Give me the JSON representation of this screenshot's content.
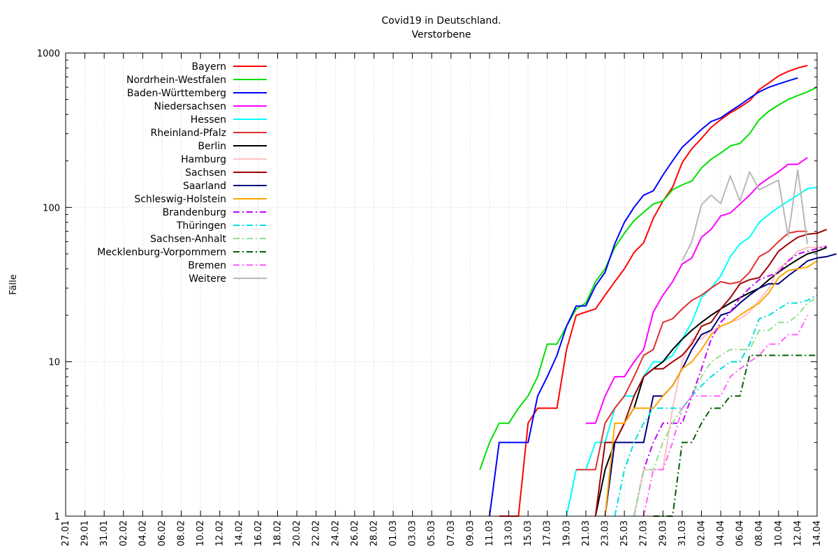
{
  "chart_data": {
    "type": "line",
    "title": "Covid19 in Deutschland.",
    "subtitle": "Verstorbene",
    "xlabel": "",
    "ylabel": "Fälle",
    "yscale": "log",
    "ylim": [
      1,
      1000
    ],
    "y_ticks": [
      "1",
      "10",
      "100",
      "1000"
    ],
    "x_ticks": [
      "27.01",
      "29.01",
      "31.01",
      "02.02",
      "04.02",
      "06.02",
      "08.02",
      "10.02",
      "12.02",
      "14.02",
      "16.02",
      "18.02",
      "20.02",
      "22.02",
      "24.02",
      "26.02",
      "28.02",
      "01.03",
      "03.03",
      "05.03",
      "07.03",
      "09.03",
      "11.03",
      "13.03",
      "15.03",
      "17.03",
      "19.03",
      "21.03",
      "23.03",
      "25.03",
      "27.03",
      "29.03",
      "31.03",
      "02.04",
      "04.04",
      "06.04",
      "08.04",
      "10.04",
      "12.04",
      "14.04"
    ],
    "x_day_range": [
      "27.01",
      "14.04"
    ],
    "grid": true,
    "legend_position": "top-left",
    "series": [
      {
        "name": "Bayern",
        "color": "#ff0000",
        "dash": "solid",
        "start": "12.03",
        "values": [
          1,
          1,
          1,
          4,
          5,
          5,
          5,
          12,
          20,
          21,
          22,
          27,
          33,
          40,
          51,
          59,
          85,
          110,
          135,
          195,
          240,
          280,
          330,
          370,
          410,
          445,
          490,
          580,
          640,
          710,
          760,
          800,
          830
        ]
      },
      {
        "name": "Nordrhein-Westfalen",
        "color": "#00e000",
        "dash": "solid",
        "start": "10.03",
        "values": [
          2,
          3,
          4,
          4,
          5,
          6,
          8,
          13,
          13,
          17,
          22,
          24,
          33,
          40,
          55,
          68,
          82,
          93,
          105,
          110,
          130,
          140,
          148,
          180,
          205,
          225,
          250,
          260,
          300,
          370,
          420,
          460,
          500,
          530,
          560,
          600
        ]
      },
      {
        "name": "Baden-Württemberg",
        "color": "#0000ff",
        "dash": "solid",
        "start": "11.03",
        "values": [
          1,
          3,
          3,
          3,
          3,
          6,
          8,
          11,
          17,
          23,
          23,
          31,
          38,
          58,
          80,
          100,
          120,
          128,
          162,
          200,
          245,
          280,
          320,
          360,
          380,
          420,
          460,
          510,
          560,
          600,
          630,
          660,
          690
        ]
      },
      {
        "name": "Niedersachsen",
        "color": "#ff00ff",
        "dash": "solid",
        "start": "21.03",
        "values": [
          4,
          4,
          6,
          8,
          8,
          10,
          12,
          21,
          27,
          33,
          43,
          47,
          64,
          72,
          88,
          92,
          105,
          120,
          140,
          155,
          170,
          190,
          190,
          210
        ]
      },
      {
        "name": "Hessen",
        "color": "#00ffff",
        "dash": "solid",
        "start": "19.03",
        "values": [
          1,
          2,
          2,
          3,
          3,
          5,
          6,
          6,
          8,
          10,
          10,
          11,
          14,
          18,
          26,
          30,
          36,
          48,
          58,
          64,
          80,
          90,
          100,
          110,
          120,
          132,
          135
        ]
      },
      {
        "name": "Rheinland-Pfalz",
        "color": "#e03030",
        "dash": "solid",
        "start": "20.03",
        "values": [
          2,
          2,
          2,
          4,
          5,
          6,
          8,
          11,
          12,
          18,
          19,
          22,
          25,
          27,
          30,
          33,
          32,
          33,
          38,
          48,
          52,
          60,
          68,
          70,
          70
        ]
      },
      {
        "name": "Berlin",
        "color": "#000000",
        "dash": "solid",
        "start": "22.03",
        "values": [
          1,
          2,
          3,
          4,
          5,
          8,
          9,
          10,
          12,
          14,
          16,
          18,
          20,
          22,
          24,
          26,
          28,
          30,
          34,
          38,
          42,
          46,
          50,
          52,
          55
        ]
      },
      {
        "name": "Hamburg",
        "color": "#ffc0c0",
        "dash": "solid",
        "start": "26.03",
        "values": [
          1,
          2,
          2,
          2,
          5,
          10,
          14,
          14,
          16,
          17,
          18,
          19,
          21,
          25,
          30,
          40,
          45,
          52,
          55,
          55,
          56
        ]
      },
      {
        "name": "Sachsen",
        "color": "#a00000",
        "dash": "solid",
        "start": "22.03",
        "values": [
          1,
          3,
          3,
          4,
          6,
          8,
          9,
          9,
          10,
          11,
          13,
          17,
          18,
          22,
          26,
          32,
          34,
          35,
          42,
          52,
          58,
          64,
          67,
          68,
          72
        ]
      },
      {
        "name": "Saarland",
        "color": "#000080",
        "dash": "solid",
        "start": "23.03",
        "values": [
          1,
          3,
          3,
          3,
          3,
          6,
          6,
          7,
          9,
          12,
          15,
          16,
          20,
          21,
          24,
          27,
          30,
          32,
          32,
          36,
          40,
          45,
          47,
          48,
          50
        ]
      },
      {
        "name": "Schleswig-Holstein",
        "color": "#ffa500",
        "dash": "solid",
        "start": "23.03",
        "values": [
          1,
          4,
          4,
          5,
          5,
          5,
          6,
          7,
          9,
          10,
          12,
          15,
          17,
          18,
          20,
          22,
          24,
          28,
          35,
          39,
          40,
          41,
          45
        ]
      },
      {
        "name": "Brandenburg",
        "color": "#c000ff",
        "dash": "dashdot",
        "start": "26.03",
        "values": [
          1,
          2,
          3,
          4,
          4,
          4,
          6,
          9,
          14,
          18,
          21,
          26,
          30,
          34,
          36,
          38,
          45,
          50,
          52,
          54,
          56
        ]
      },
      {
        "name": "Thüringen",
        "color": "#00e0e0",
        "dash": "dashdot",
        "start": "24.03",
        "values": [
          1,
          2,
          3,
          4,
          5,
          5,
          5,
          5,
          6,
          7,
          8,
          9,
          10,
          10,
          13,
          19,
          20,
          22,
          24,
          24,
          25,
          27
        ]
      },
      {
        "name": "Sachsen-Anhalt",
        "color": "#90e090",
        "dash": "dashdot",
        "start": "26.03",
        "values": [
          1,
          2,
          2,
          3,
          4,
          5,
          6,
          8,
          10,
          11,
          12,
          12,
          12,
          16,
          16,
          18,
          18,
          20,
          24,
          26
        ]
      },
      {
        "name": "Mecklenburg-Vorpommern",
        "color": "#006000",
        "dash": "dashdot",
        "start": "28.03",
        "values": [
          1,
          1,
          1,
          3,
          3,
          4,
          5,
          5,
          6,
          6,
          11,
          11,
          11,
          11,
          11,
          11,
          11,
          11
        ]
      },
      {
        "name": "Bremen",
        "color": "#ff60ff",
        "dash": "dashdot",
        "start": "27.03",
        "values": [
          1,
          2,
          2,
          3,
          5,
          6,
          6,
          6,
          6,
          8,
          9,
          10,
          11,
          13,
          13,
          15,
          15,
          20
        ]
      },
      {
        "name": "Weitere",
        "color": "#b8b8b8",
        "dash": "solid",
        "start": "31.03",
        "values": [
          45,
          60,
          104,
          120,
          106,
          160,
          110,
          170,
          130,
          140,
          150,
          65,
          175,
          58
        ]
      }
    ]
  }
}
